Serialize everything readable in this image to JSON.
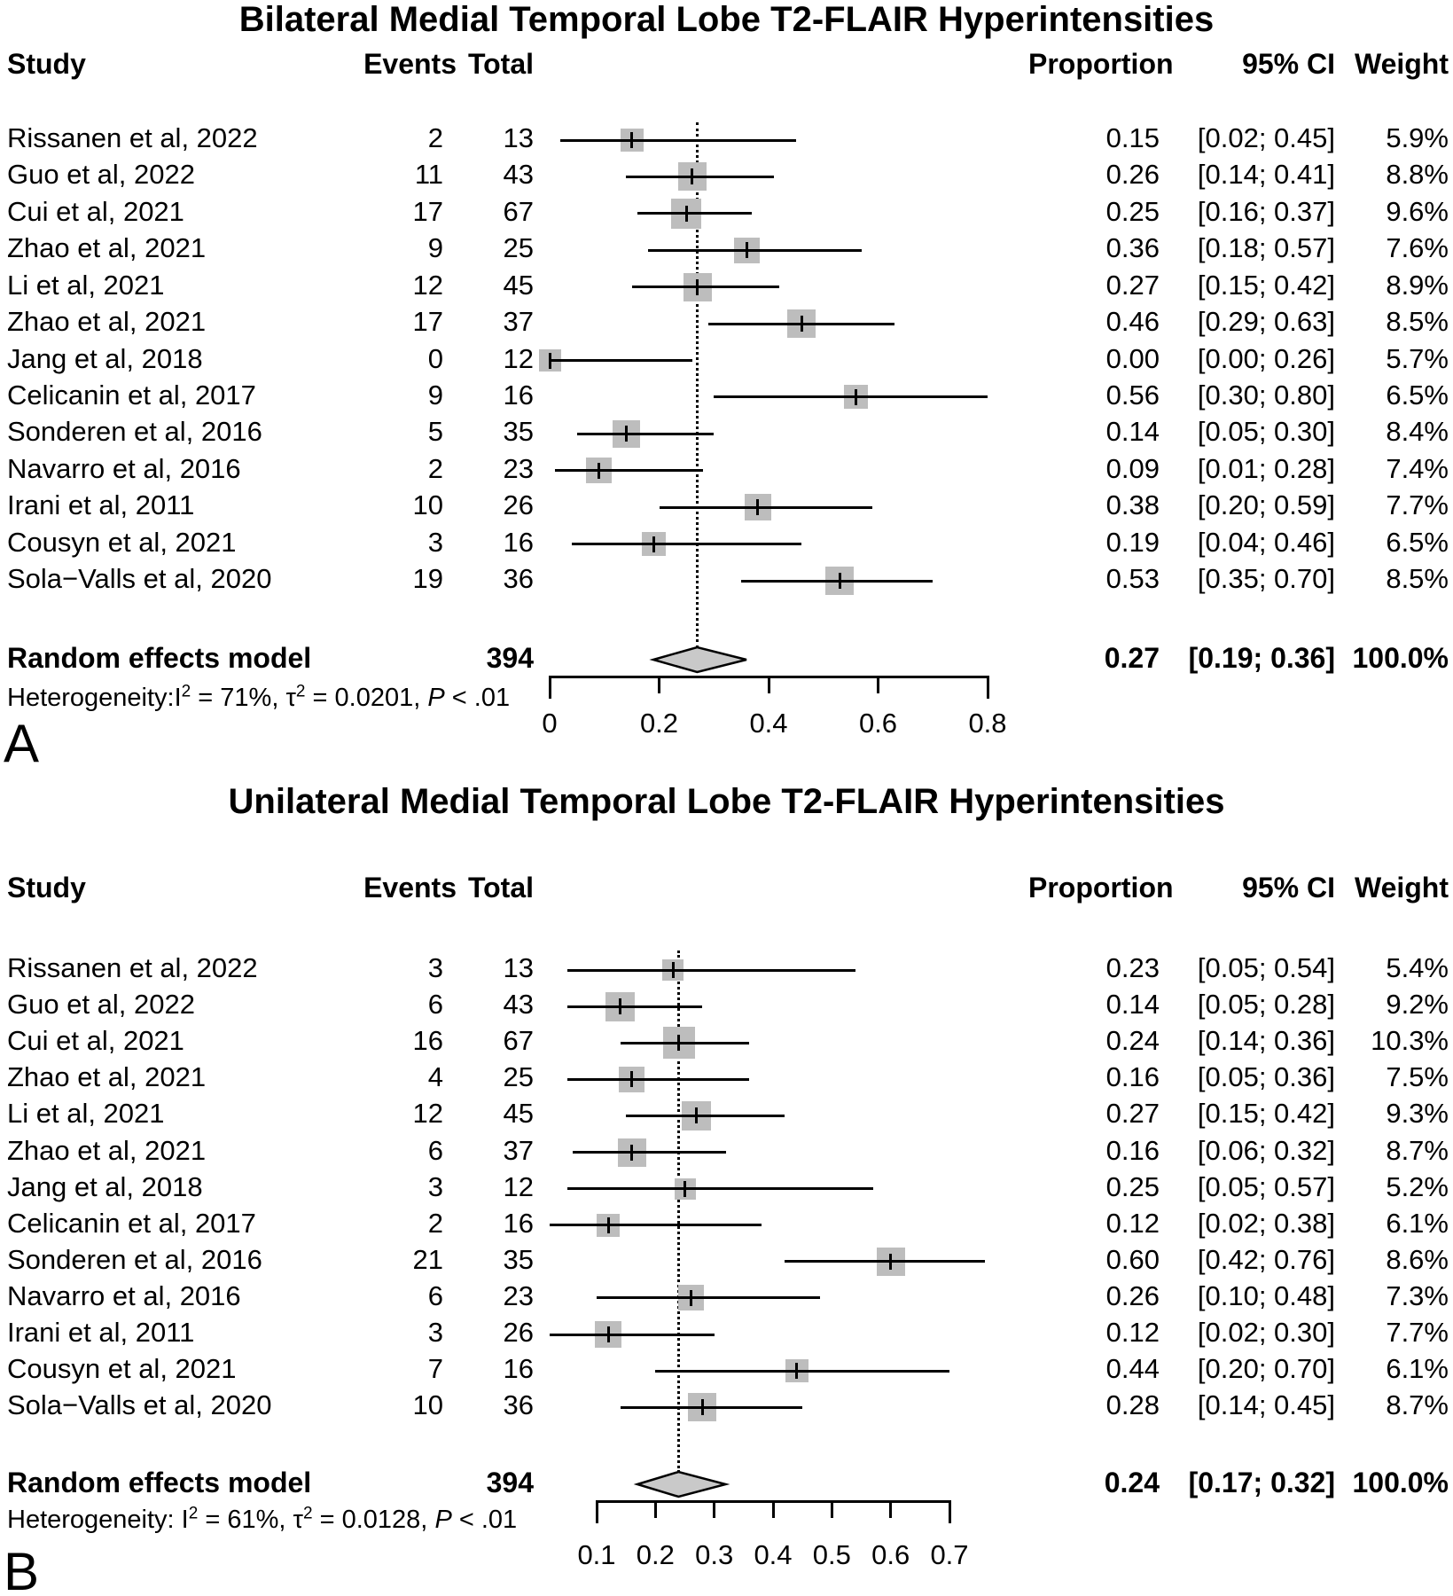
{
  "chart_data": [
    {
      "type": "scatter",
      "variant": "forest-plot",
      "panel_label": "A",
      "title": "Bilateral Medial Temporal Lobe T2-FLAIR Hyperintensities",
      "columns": {
        "study": "Study",
        "events": "Events",
        "total": "Total",
        "proportion": "Proportion",
        "ci": "95% CI",
        "weight": "Weight"
      },
      "marker_color": "#bdbdbd",
      "diamond_color": "#c9c9c9",
      "studies": [
        {
          "study": "Rissanen et al, 2022",
          "events": "2",
          "total": "13",
          "proportion": "0.15",
          "ci_text": "[0.02; 0.45]",
          "weight_text": "5.9%",
          "p": 0.15,
          "lo": 0.02,
          "hi": 0.45,
          "w": 5.9
        },
        {
          "study": "Guo et al, 2022",
          "events": "11",
          "total": "43",
          "proportion": "0.26",
          "ci_text": "[0.14; 0.41]",
          "weight_text": "8.8%",
          "p": 0.26,
          "lo": 0.14,
          "hi": 0.41,
          "w": 8.8
        },
        {
          "study": "Cui et al, 2021",
          "events": "17",
          "total": "67",
          "proportion": "0.25",
          "ci_text": "[0.16; 0.37]",
          "weight_text": "9.6%",
          "p": 0.25,
          "lo": 0.16,
          "hi": 0.37,
          "w": 9.6
        },
        {
          "study": "Zhao et al, 2021",
          "events": "9",
          "total": "25",
          "proportion": "0.36",
          "ci_text": "[0.18; 0.57]",
          "weight_text": "7.6%",
          "p": 0.36,
          "lo": 0.18,
          "hi": 0.57,
          "w": 7.6
        },
        {
          "study": "Li et al, 2021",
          "events": "12",
          "total": "45",
          "proportion": "0.27",
          "ci_text": "[0.15; 0.42]",
          "weight_text": "8.9%",
          "p": 0.27,
          "lo": 0.15,
          "hi": 0.42,
          "w": 8.9
        },
        {
          "study": "Zhao et al, 2021",
          "events": "17",
          "total": "37",
          "proportion": "0.46",
          "ci_text": "[0.29; 0.63]",
          "weight_text": "8.5%",
          "p": 0.46,
          "lo": 0.29,
          "hi": 0.63,
          "w": 8.5
        },
        {
          "study": "Jang et al, 2018",
          "events": "0",
          "total": "12",
          "proportion": "0.00",
          "ci_text": "[0.00; 0.26]",
          "weight_text": "5.7%",
          "p": 0.0,
          "lo": 0.0,
          "hi": 0.26,
          "w": 5.7
        },
        {
          "study": "Celicanin et al, 2017",
          "events": "9",
          "total": "16",
          "proportion": "0.56",
          "ci_text": "[0.30; 0.80]",
          "weight_text": "6.5%",
          "p": 0.56,
          "lo": 0.3,
          "hi": 0.8,
          "w": 6.5
        },
        {
          "study": "Sonderen et al, 2016",
          "events": "5",
          "total": "35",
          "proportion": "0.14",
          "ci_text": "[0.05; 0.30]",
          "weight_text": "8.4%",
          "p": 0.14,
          "lo": 0.05,
          "hi": 0.3,
          "w": 8.4
        },
        {
          "study": "Navarro et al, 2016",
          "events": "2",
          "total": "23",
          "proportion": "0.09",
          "ci_text": "[0.01; 0.28]",
          "weight_text": "7.4%",
          "p": 0.09,
          "lo": 0.01,
          "hi": 0.28,
          "w": 7.4
        },
        {
          "study": "Irani et al, 2011",
          "events": "10",
          "total": "26",
          "proportion": "0.38",
          "ci_text": "[0.20; 0.59]",
          "weight_text": "7.7%",
          "p": 0.38,
          "lo": 0.2,
          "hi": 0.59,
          "w": 7.7
        },
        {
          "study": "Cousyn et al, 2021",
          "events": "3",
          "total": "16",
          "proportion": "0.19",
          "ci_text": "[0.04; 0.46]",
          "weight_text": "6.5%",
          "p": 0.19,
          "lo": 0.04,
          "hi": 0.46,
          "w": 6.5
        },
        {
          "study": "Sola−Valls et al, 2020",
          "events": "19",
          "total": "36",
          "proportion": "0.53",
          "ci_text": "[0.35; 0.70]",
          "weight_text": "8.5%",
          "p": 0.53,
          "lo": 0.35,
          "hi": 0.7,
          "w": 8.5
        }
      ],
      "pooled": {
        "label": "Random effects model",
        "total": "394",
        "proportion": "0.27",
        "ci_text": "[0.19; 0.36]",
        "weight_text": "100.0%",
        "p": 0.27,
        "lo": 0.19,
        "hi": 0.36
      },
      "heterogeneity": {
        "pre": "Heterogeneity:I",
        "sup1": "2",
        "mid1": " = 71%, τ",
        "sup2": "2",
        "mid2": " = 0.0201, ",
        "p_label": "P",
        "post": " < .01"
      },
      "x_axis": {
        "range": [
          0,
          0.8
        ],
        "ticks": [
          0,
          0.2,
          0.4,
          0.6,
          0.8
        ],
        "tick_labels": [
          "0",
          "0.2",
          "0.4",
          "0.6",
          "0.8"
        ]
      }
    },
    {
      "type": "scatter",
      "variant": "forest-plot",
      "panel_label": "B",
      "title": "Unilateral Medial Temporal Lobe T2-FLAIR Hyperintensities",
      "columns": {
        "study": "Study",
        "events": "Events",
        "total": "Total",
        "proportion": "Proportion",
        "ci": "95% CI",
        "weight": "Weight"
      },
      "marker_color": "#bdbdbd",
      "diamond_color": "#c9c9c9",
      "studies": [
        {
          "study": "Rissanen et al, 2022",
          "events": "3",
          "total": "13",
          "proportion": "0.23",
          "ci_text": "[0.05; 0.54]",
          "weight_text": "5.4%",
          "p": 0.23,
          "lo": 0.05,
          "hi": 0.54,
          "w": 5.4
        },
        {
          "study": "Guo et al, 2022",
          "events": "6",
          "total": "43",
          "proportion": "0.14",
          "ci_text": "[0.05; 0.28]",
          "weight_text": "9.2%",
          "p": 0.14,
          "lo": 0.05,
          "hi": 0.28,
          "w": 9.2
        },
        {
          "study": "Cui et al, 2021",
          "events": "16",
          "total": "67",
          "proportion": "0.24",
          "ci_text": "[0.14; 0.36]",
          "weight_text": "10.3%",
          "p": 0.24,
          "lo": 0.14,
          "hi": 0.36,
          "w": 10.3
        },
        {
          "study": "Zhao et al, 2021",
          "events": "4",
          "total": "25",
          "proportion": "0.16",
          "ci_text": "[0.05; 0.36]",
          "weight_text": "7.5%",
          "p": 0.16,
          "lo": 0.05,
          "hi": 0.36,
          "w": 7.5
        },
        {
          "study": "Li et al, 2021",
          "events": "12",
          "total": "45",
          "proportion": "0.27",
          "ci_text": "[0.15; 0.42]",
          "weight_text": "9.3%",
          "p": 0.27,
          "lo": 0.15,
          "hi": 0.42,
          "w": 9.3
        },
        {
          "study": "Zhao et al, 2021",
          "events": "6",
          "total": "37",
          "proportion": "0.16",
          "ci_text": "[0.06; 0.32]",
          "weight_text": "8.7%",
          "p": 0.16,
          "lo": 0.06,
          "hi": 0.32,
          "w": 8.7
        },
        {
          "study": "Jang et al, 2018",
          "events": "3",
          "total": "12",
          "proportion": "0.25",
          "ci_text": "[0.05; 0.57]",
          "weight_text": "5.2%",
          "p": 0.25,
          "lo": 0.05,
          "hi": 0.57,
          "w": 5.2
        },
        {
          "study": "Celicanin et al, 2017",
          "events": "2",
          "total": "16",
          "proportion": "0.12",
          "ci_text": "[0.02; 0.38]",
          "weight_text": "6.1%",
          "p": 0.12,
          "lo": 0.02,
          "hi": 0.38,
          "w": 6.1
        },
        {
          "study": "Sonderen et al, 2016",
          "events": "21",
          "total": "35",
          "proportion": "0.60",
          "ci_text": "[0.42; 0.76]",
          "weight_text": "8.6%",
          "p": 0.6,
          "lo": 0.42,
          "hi": 0.76,
          "w": 8.6
        },
        {
          "study": "Navarro et al, 2016",
          "events": "6",
          "total": "23",
          "proportion": "0.26",
          "ci_text": "[0.10; 0.48]",
          "weight_text": "7.3%",
          "p": 0.26,
          "lo": 0.1,
          "hi": 0.48,
          "w": 7.3
        },
        {
          "study": "Irani et al, 2011",
          "events": "3",
          "total": "26",
          "proportion": "0.12",
          "ci_text": "[0.02; 0.30]",
          "weight_text": "7.7%",
          "p": 0.12,
          "lo": 0.02,
          "hi": 0.3,
          "w": 7.7
        },
        {
          "study": "Cousyn et al, 2021",
          "events": "7",
          "total": "16",
          "proportion": "0.44",
          "ci_text": "[0.20; 0.70]",
          "weight_text": "6.1%",
          "p": 0.44,
          "lo": 0.2,
          "hi": 0.7,
          "w": 6.1
        },
        {
          "study": "Sola−Valls et al, 2020",
          "events": "10",
          "total": "36",
          "proportion": "0.28",
          "ci_text": "[0.14; 0.45]",
          "weight_text": "8.7%",
          "p": 0.28,
          "lo": 0.14,
          "hi": 0.45,
          "w": 8.7
        }
      ],
      "pooled": {
        "label": "Random effects model",
        "total": "394",
        "proportion": "0.24",
        "ci_text": "[0.17; 0.32]",
        "weight_text": "100.0%",
        "p": 0.24,
        "lo": 0.17,
        "hi": 0.32
      },
      "heterogeneity": {
        "pre": "Heterogeneity: I",
        "sup1": "2",
        "mid1": " = 61%, τ",
        "sup2": "2",
        "mid2": " = 0.0128, ",
        "p_label": "P",
        "post": " < .01"
      },
      "x_axis": {
        "range": [
          0.1,
          0.7
        ],
        "ticks": [
          0.1,
          0.2,
          0.3,
          0.4,
          0.5,
          0.6,
          0.7
        ],
        "tick_labels": [
          "0.1",
          "0.2",
          "0.3",
          "0.4",
          "0.5",
          "0.6",
          "0.7"
        ]
      }
    }
  ]
}
